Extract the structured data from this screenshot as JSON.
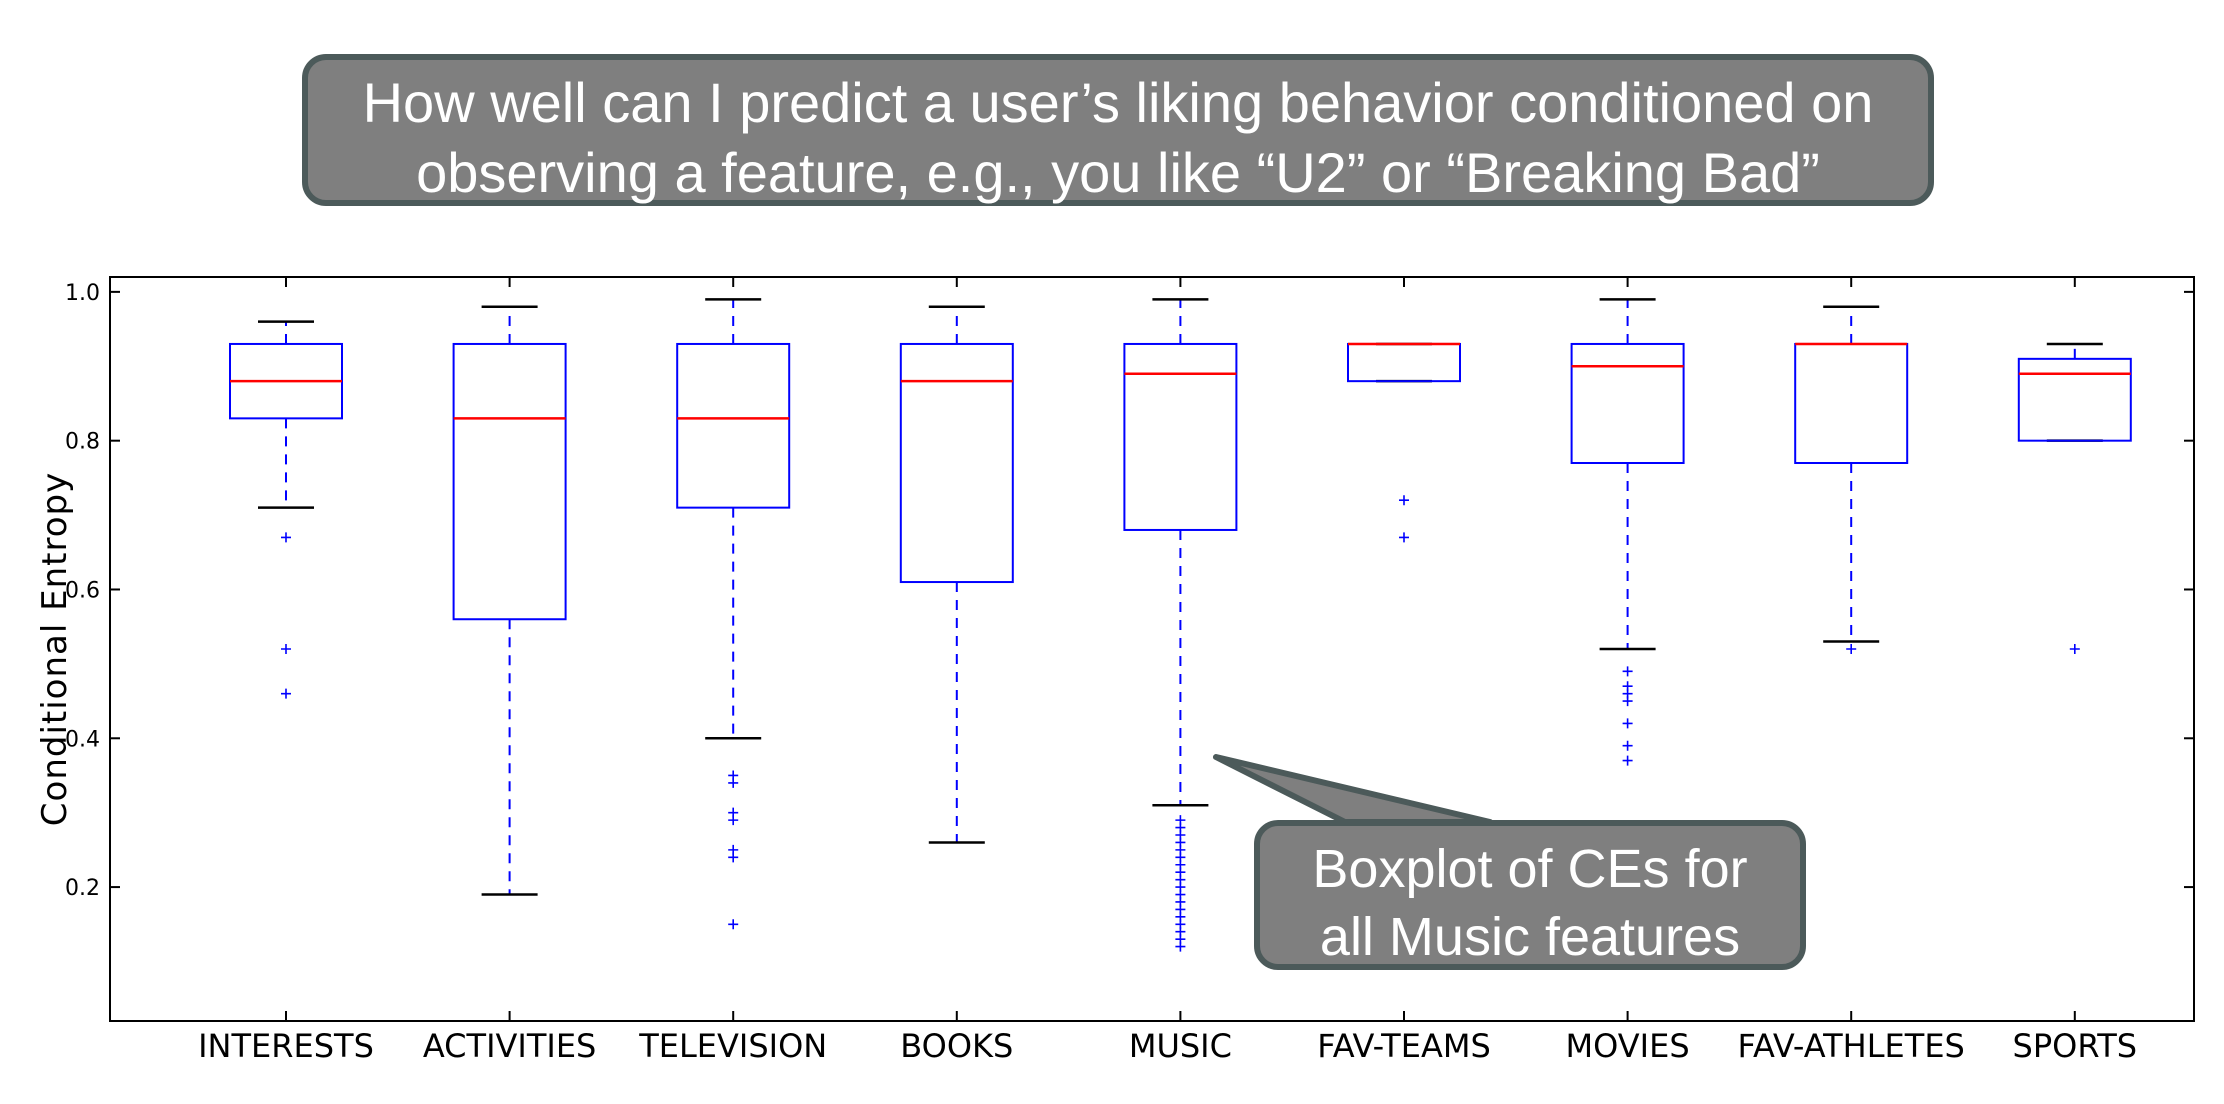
{
  "header": {
    "title_line1": "How well can I predict a user’s liking behavior conditioned on",
    "title_line2": "observing a feature, e.g., you like “U2” or “Breaking Bad”"
  },
  "callout": {
    "line1": "Boxplot of CEs for",
    "line2": "all Music features",
    "points_to": "MUSIC"
  },
  "colors": {
    "box": "#0000ff",
    "median": "#ff0000",
    "whisker_cap": "#000000",
    "outlier": "#0000ff",
    "callout_fill": "#7f7f7f",
    "callout_border": "#4c5a5a"
  },
  "chart_data": {
    "type": "boxplot",
    "xlabel": "",
    "ylabel": "Conditional Entropy",
    "ylim": [
      0.02,
      1.02
    ],
    "yticks": [
      0.2,
      0.4,
      0.6,
      0.8,
      1.0
    ],
    "ytick_labels": [
      "0.2",
      "0.4",
      "0.6",
      "0.8",
      "1.0"
    ],
    "grid": false,
    "categories": [
      "INTERESTS",
      "ACTIVITIES",
      "TELEVISION",
      "BOOKS",
      "MUSIC",
      "FAV-TEAMS",
      "MOVIES",
      "FAV-ATHLETES",
      "SPORTS"
    ],
    "boxes": [
      {
        "category": "INTERESTS",
        "whisker_low": 0.71,
        "q1": 0.83,
        "median": 0.88,
        "q3": 0.93,
        "whisker_high": 0.96,
        "outliers": [
          0.67,
          0.52,
          0.46
        ]
      },
      {
        "category": "ACTIVITIES",
        "whisker_low": 0.19,
        "q1": 0.56,
        "median": 0.83,
        "q3": 0.93,
        "whisker_high": 0.98,
        "outliers": []
      },
      {
        "category": "TELEVISION",
        "whisker_low": 0.4,
        "q1": 0.71,
        "median": 0.83,
        "q3": 0.93,
        "whisker_high": 0.99,
        "outliers": [
          0.35,
          0.34,
          0.3,
          0.29,
          0.25,
          0.24,
          0.15
        ]
      },
      {
        "category": "BOOKS",
        "whisker_low": 0.26,
        "q1": 0.61,
        "median": 0.88,
        "q3": 0.93,
        "whisker_high": 0.98,
        "outliers": []
      },
      {
        "category": "MUSIC",
        "whisker_low": 0.31,
        "q1": 0.68,
        "median": 0.89,
        "q3": 0.93,
        "whisker_high": 0.99,
        "outliers": [
          0.29,
          0.28,
          0.27,
          0.26,
          0.25,
          0.24,
          0.23,
          0.22,
          0.21,
          0.2,
          0.19,
          0.18,
          0.17,
          0.16,
          0.15,
          0.14,
          0.13,
          0.12
        ]
      },
      {
        "category": "FAV-TEAMS",
        "whisker_low": 0.88,
        "q1": 0.88,
        "median": 0.93,
        "q3": 0.93,
        "whisker_high": 0.93,
        "outliers": [
          0.72,
          0.67
        ]
      },
      {
        "category": "MOVIES",
        "whisker_low": 0.52,
        "q1": 0.77,
        "median": 0.9,
        "q3": 0.93,
        "whisker_high": 0.99,
        "outliers": [
          0.49,
          0.47,
          0.46,
          0.45,
          0.42,
          0.39,
          0.37
        ]
      },
      {
        "category": "FAV-ATHLETES",
        "whisker_low": 0.53,
        "q1": 0.77,
        "median": 0.93,
        "q3": 0.93,
        "whisker_high": 0.98,
        "outliers": [
          0.52
        ]
      },
      {
        "category": "SPORTS",
        "whisker_low": 0.8,
        "q1": 0.8,
        "median": 0.89,
        "q3": 0.91,
        "whisker_high": 0.93,
        "outliers": [
          0.52
        ]
      }
    ]
  }
}
